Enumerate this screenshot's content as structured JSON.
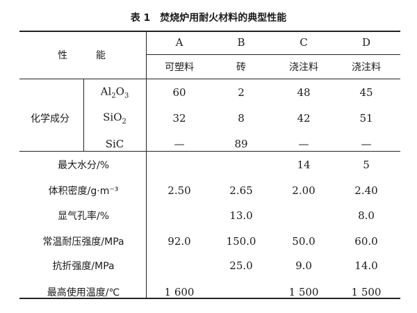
{
  "title": "表 1　焚烧炉用耐火材料的典型性能",
  "header": {
    "property_label": [
      "性",
      "能"
    ],
    "columns": [
      {
        "code": "A",
        "type": "可塑料"
      },
      {
        "code": "B",
        "type": "砖"
      },
      {
        "code": "C",
        "type": "浇注料"
      },
      {
        "code": "D",
        "type": "浇注料"
      }
    ]
  },
  "chemical": {
    "group_label": "化学成分",
    "rows": [
      {
        "label_html": "Al<sub>2</sub>O<sub>3</sub>",
        "label": "Al2O3",
        "values": [
          "60",
          "2",
          "48",
          "45"
        ]
      },
      {
        "label_html": "SiO<sub>2</sub>",
        "label": "SiO2",
        "values": [
          "32",
          "8",
          "42",
          "51"
        ]
      },
      {
        "label": "SiC",
        "values": [
          "—",
          "89",
          "—",
          "—"
        ]
      }
    ]
  },
  "properties": [
    {
      "label": "最大水分/%",
      "values": [
        "",
        "",
        "14",
        "5"
      ]
    },
    {
      "label": "体积密度/g·m⁻³",
      "values": [
        "2.50",
        "2.65",
        "2.00",
        "2.40"
      ]
    },
    {
      "label": "显气孔率/%",
      "values": [
        "",
        "13.0",
        "",
        "8.0"
      ]
    },
    {
      "label": "常温耐压强度/MPa",
      "values": [
        "92.0",
        "150.0",
        "50.0",
        "60.0"
      ]
    },
    {
      "label": "抗折强度/MPa",
      "values": [
        "",
        "25.0",
        "9.0",
        "14.0"
      ]
    },
    {
      "label": "最高使用温度/℃",
      "values": [
        "1 600",
        "",
        "1 500",
        "1 500"
      ]
    }
  ]
}
